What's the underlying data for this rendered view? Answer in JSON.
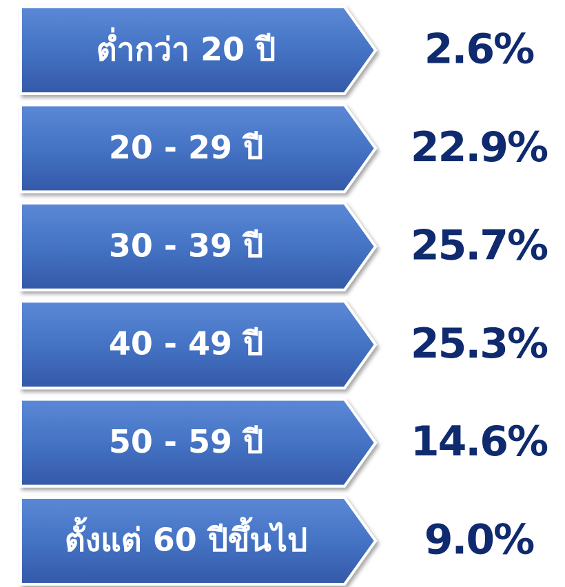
{
  "items": [
    {
      "label": "ต่ำกว่า 20 ปี",
      "value": "2.6%"
    },
    {
      "label": "20 - 29 ปี",
      "value": "22.9%"
    },
    {
      "label": "30 - 39 ปี",
      "value": "25.7%"
    },
    {
      "label": "40 - 49 ปี",
      "value": "25.3%"
    },
    {
      "label": "50 - 59 ปี",
      "value": "14.6%"
    },
    {
      "label": "ตั้งแต่ 60 ปีขึ้นไป",
      "value": "9.0%"
    }
  ]
}
